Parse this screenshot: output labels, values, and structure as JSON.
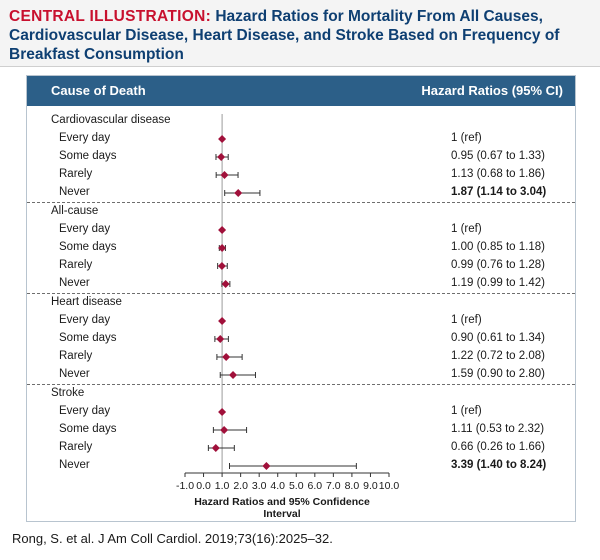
{
  "header": {
    "lead": "CENTRAL ILLUSTRATION:",
    "title": "Hazard Ratios for Mortality From All Causes, Cardiovascular Disease, Heart Disease, and Stroke Based on Frequency of Breakfast Consumption"
  },
  "columns": {
    "left": "Cause of Death",
    "right": "Hazard Ratios (95% CI)"
  },
  "colors": {
    "header_bg": "#2c5f88",
    "marker": "#a0103a",
    "title_lead": "#c8102e",
    "title": "#0e3f72"
  },
  "groups": [
    {
      "label": "Cardiovascular disease",
      "rows": [
        {
          "label": "Every day",
          "hr_text": "1 (ref)",
          "bold": false
        },
        {
          "label": "Some days",
          "hr_text": "0.95 (0.67 to 1.33)",
          "bold": false
        },
        {
          "label": "Rarely",
          "hr_text": "1.13 (0.68 to 1.86)",
          "bold": false
        },
        {
          "label": "Never",
          "hr_text": "1.87 (1.14 to 3.04)",
          "bold": true
        }
      ]
    },
    {
      "label": "All-cause",
      "rows": [
        {
          "label": "Every day",
          "hr_text": "1 (ref)",
          "bold": false
        },
        {
          "label": "Some days",
          "hr_text": "1.00 (0.85 to 1.18)",
          "bold": false
        },
        {
          "label": "Rarely",
          "hr_text": "0.99 (0.76 to 1.28)",
          "bold": false
        },
        {
          "label": "Never",
          "hr_text": "1.19 (0.99 to 1.42)",
          "bold": false
        }
      ]
    },
    {
      "label": "Heart disease",
      "rows": [
        {
          "label": "Every day",
          "hr_text": "1 (ref)",
          "bold": false
        },
        {
          "label": "Some days",
          "hr_text": "0.90 (0.61 to 1.34)",
          "bold": false
        },
        {
          "label": "Rarely",
          "hr_text": "1.22 (0.72 to 2.08)",
          "bold": false
        },
        {
          "label": "Never",
          "hr_text": "1.59 (0.90 to 2.80)",
          "bold": false
        }
      ]
    },
    {
      "label": "Stroke",
      "rows": [
        {
          "label": "Every day",
          "hr_text": "1 (ref)",
          "bold": false
        },
        {
          "label": "Some days",
          "hr_text": "1.11 (0.53 to 2.32)",
          "bold": false
        },
        {
          "label": "Rarely",
          "hr_text": "0.66 (0.26 to 1.66)",
          "bold": false
        },
        {
          "label": "Never",
          "hr_text": "3.39 (1.40 to 8.24)",
          "bold": true
        }
      ]
    }
  ],
  "chart_data": {
    "type": "forest",
    "title": "Hazard Ratios for Mortality From All Causes, Cardiovascular Disease, Heart Disease, and Stroke Based on Frequency of Breakfast Consumption",
    "xlabel": "Hazard Ratios and 95% Confidence Interval",
    "xlim": [
      -1.0,
      10.0
    ],
    "xticks": [
      -1.0,
      0.0,
      1.0,
      2.0,
      3.0,
      4.0,
      5.0,
      6.0,
      7.0,
      8.0,
      9.0,
      10.0
    ],
    "xtick_labels": [
      "-1.0",
      "0.0",
      "1.0",
      "2.0",
      "3.0",
      "4.0",
      "5.0",
      "6.0",
      "7.0",
      "8.0",
      "9.0",
      "10.0"
    ],
    "reference_line": 1.0,
    "series": [
      {
        "name": "Cardiovascular disease",
        "points": [
          {
            "label": "Every day",
            "hr": 1.0,
            "lo": 1.0,
            "hi": 1.0
          },
          {
            "label": "Some days",
            "hr": 0.95,
            "lo": 0.67,
            "hi": 1.33
          },
          {
            "label": "Rarely",
            "hr": 1.13,
            "lo": 0.68,
            "hi": 1.86
          },
          {
            "label": "Never",
            "hr": 1.87,
            "lo": 1.14,
            "hi": 3.04
          }
        ]
      },
      {
        "name": "All-cause",
        "points": [
          {
            "label": "Every day",
            "hr": 1.0,
            "lo": 1.0,
            "hi": 1.0
          },
          {
            "label": "Some days",
            "hr": 1.0,
            "lo": 0.85,
            "hi": 1.18
          },
          {
            "label": "Rarely",
            "hr": 0.99,
            "lo": 0.76,
            "hi": 1.28
          },
          {
            "label": "Never",
            "hr": 1.19,
            "lo": 0.99,
            "hi": 1.42
          }
        ]
      },
      {
        "name": "Heart disease",
        "points": [
          {
            "label": "Every day",
            "hr": 1.0,
            "lo": 1.0,
            "hi": 1.0
          },
          {
            "label": "Some days",
            "hr": 0.9,
            "lo": 0.61,
            "hi": 1.34
          },
          {
            "label": "Rarely",
            "hr": 1.22,
            "lo": 0.72,
            "hi": 2.08
          },
          {
            "label": "Never",
            "hr": 1.59,
            "lo": 0.9,
            "hi": 2.8
          }
        ]
      },
      {
        "name": "Stroke",
        "points": [
          {
            "label": "Every day",
            "hr": 1.0,
            "lo": 1.0,
            "hi": 1.0
          },
          {
            "label": "Some days",
            "hr": 1.11,
            "lo": 0.53,
            "hi": 2.32
          },
          {
            "label": "Rarely",
            "hr": 0.66,
            "lo": 0.26,
            "hi": 1.66
          },
          {
            "label": "Never",
            "hr": 3.39,
            "lo": 1.4,
            "hi": 8.24
          }
        ]
      }
    ]
  },
  "footer": {
    "citation": "Rong, S. et al. J Am Coll Cardiol. 2019;73(16):2025–32."
  }
}
